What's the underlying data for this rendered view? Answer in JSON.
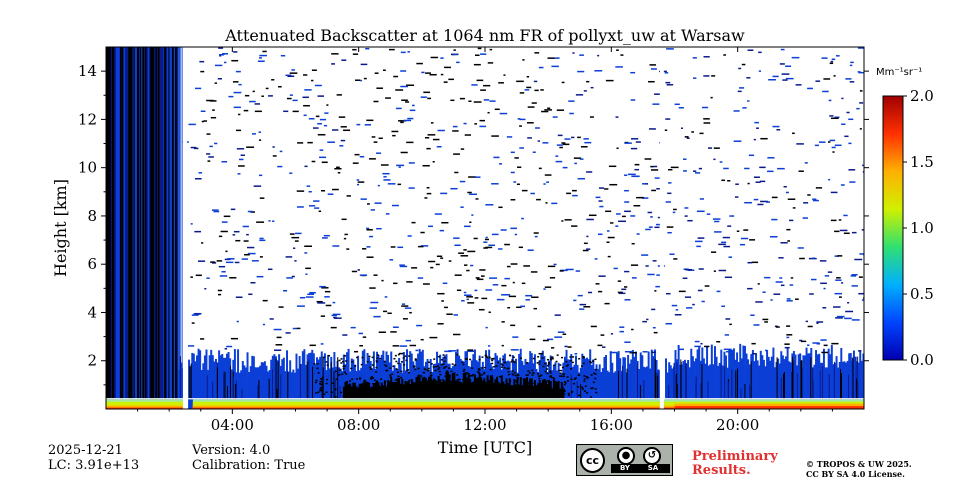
{
  "chart_data": {
    "type": "heatmap",
    "title": "Attenuated Backscatter at 1064 nm FR of pollyxt_uw at Warsaw",
    "xlabel": "Time [UTC]",
    "ylabel": "Height [km]",
    "x_ticks": [
      "04:00",
      "08:00",
      "12:00",
      "16:00",
      "20:00"
    ],
    "x_tick_hours": [
      4,
      8,
      12,
      16,
      20
    ],
    "xlim_hours": [
      0,
      24
    ],
    "y_ticks": [
      "2",
      "4",
      "6",
      "8",
      "10",
      "12",
      "14"
    ],
    "y_tick_values": [
      2,
      4,
      6,
      8,
      10,
      12,
      14
    ],
    "ylim_km": [
      0,
      15
    ],
    "colorbar": {
      "unit_label": "Mm⁻¹sr⁻¹",
      "ticks": [
        "0.0",
        "0.5",
        "1.0",
        "1.5",
        "2.0"
      ],
      "tick_values": [
        0.0,
        0.5,
        1.0,
        1.5,
        2.0
      ],
      "range": [
        0.0,
        2.0
      ],
      "colormap": [
        "#0000b0",
        "#0044ff",
        "#00b0ff",
        "#30e070",
        "#d0f000",
        "#ffb000",
        "#ff3000",
        "#a00000"
      ]
    },
    "data_gaps_hours": [
      2.5,
      17.6
    ],
    "dense_column_region_hours": [
      0,
      2.3
    ],
    "black_layer": {
      "start_hour": 7.5,
      "end_hour": 14.5,
      "top_km": 1.6
    },
    "surface_layer_top_km": 0.4,
    "colors": {
      "low": "#0b3fd6",
      "dark": "#0a1a8a",
      "black": "#000000"
    }
  },
  "footer": {
    "date": "2025-12-21",
    "lc": "LC: 3.91e+13",
    "version": "Version: 4.0",
    "calibration": "Calibration: True",
    "preliminary_line1": "Preliminary",
    "preliminary_line2": "Results.",
    "preliminary_color": "#e03030",
    "copyright_line1": "© TROPOS & UW 2025.",
    "copyright_line2": "CC BY SA 4.0 License.",
    "cc_label": "cc",
    "cc_by": "BY",
    "cc_sa": "SA"
  }
}
